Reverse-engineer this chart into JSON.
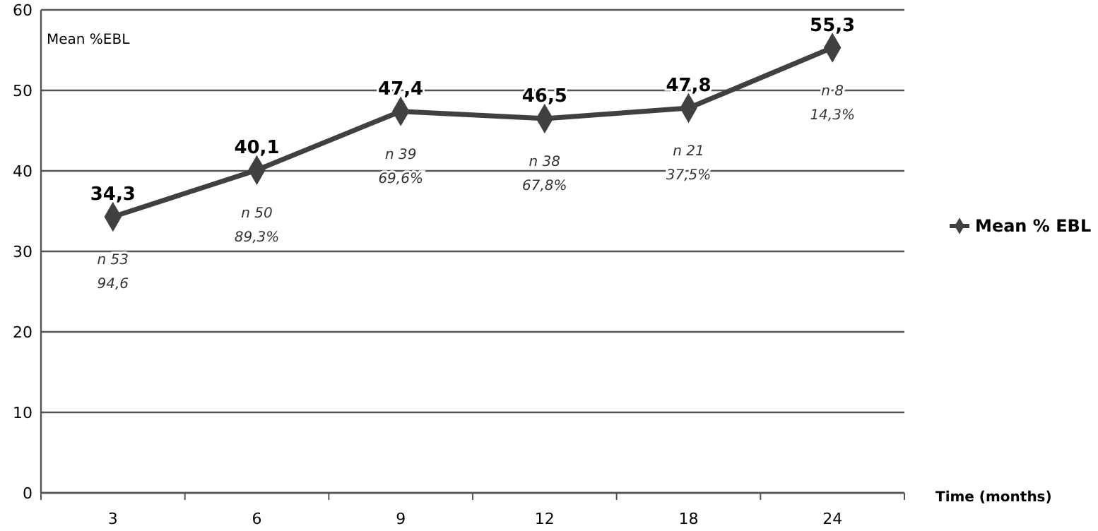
{
  "chart_data": {
    "type": "line",
    "ylabel": "Mean %EBL",
    "xlabel": "Time (months)",
    "categories": [
      "3",
      "6",
      "9",
      "12",
      "18",
      "24"
    ],
    "series": [
      {
        "name": "Mean % EBL",
        "color": "#404040",
        "values": [
          34.3,
          40.1,
          47.4,
          46.5,
          47.8,
          55.3
        ],
        "value_labels": [
          "34,3",
          "40,1",
          "47,4",
          "46,5",
          "47,8",
          "55,3"
        ]
      }
    ],
    "ylim": [
      0,
      60
    ],
    "yticks": [
      0,
      10,
      20,
      30,
      40,
      50,
      60
    ],
    "grid": "y",
    "legend": "right",
    "marker": "diamond",
    "line_style": "solid",
    "annotations": [
      "n 53",
      "94,6",
      "n 50",
      "89,3%",
      "n 39",
      "69,6%",
      "n 38",
      "67,8%",
      "n 21",
      "37,5%",
      "n 8",
      "14,3%"
    ]
  }
}
